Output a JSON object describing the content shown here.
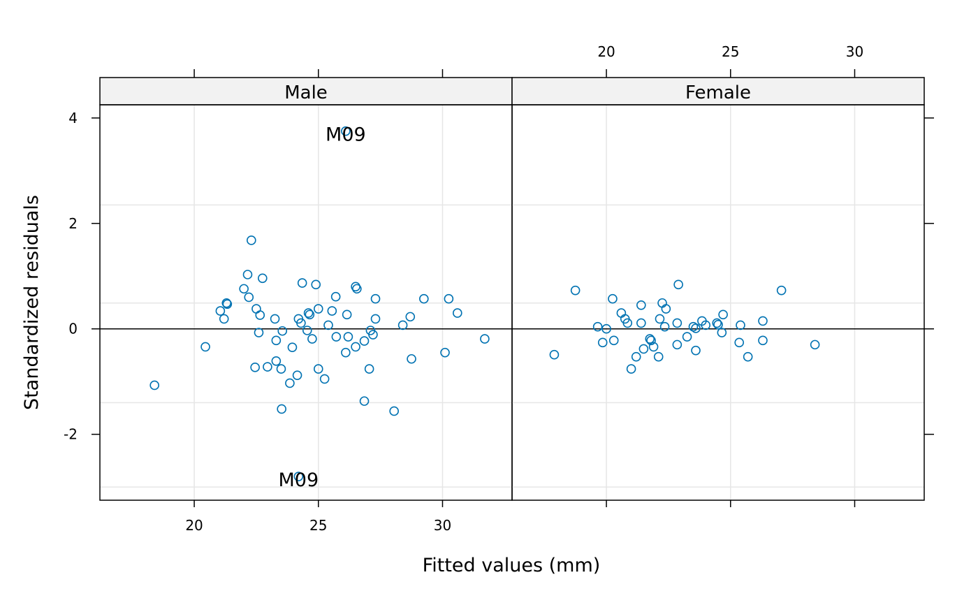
{
  "chart_data": {
    "type": "scatter",
    "xlabel": "Fitted values (mm)",
    "ylabel": "Standardized residuals",
    "xlim": [
      16.2,
      32.8
    ],
    "ylim": [
      -3.25,
      4.25
    ],
    "x_ticks": [
      20,
      25,
      30
    ],
    "y_ticks": [
      -2,
      0,
      2,
      4
    ],
    "y_tick_labels": [
      "-2",
      "0",
      "2",
      "4"
    ],
    "grid": true,
    "reference_line_y": 0,
    "point_color": "#0072b2",
    "panels": [
      {
        "name": "Male",
        "points": [
          [
            18.4,
            -1.07
          ],
          [
            20.45,
            -0.34
          ],
          [
            21.05,
            0.34
          ],
          [
            21.2,
            0.19
          ],
          [
            21.3,
            0.49
          ],
          [
            21.33,
            0.47
          ],
          [
            22.0,
            0.76
          ],
          [
            22.15,
            1.03
          ],
          [
            22.2,
            0.6
          ],
          [
            22.3,
            1.68
          ],
          [
            22.45,
            -0.73
          ],
          [
            22.5,
            0.38
          ],
          [
            22.6,
            -0.07
          ],
          [
            22.65,
            0.26
          ],
          [
            22.75,
            0.96
          ],
          [
            22.95,
            -0.72
          ],
          [
            23.25,
            0.19
          ],
          [
            23.3,
            -0.22
          ],
          [
            23.3,
            -0.61
          ],
          [
            23.5,
            -0.76
          ],
          [
            23.52,
            -1.52
          ],
          [
            23.55,
            -0.04
          ],
          [
            23.85,
            -1.03
          ],
          [
            23.95,
            -0.35
          ],
          [
            24.15,
            -0.88
          ],
          [
            24.2,
            0.19
          ],
          [
            24.3,
            0.11
          ],
          [
            24.35,
            0.87
          ],
          [
            24.55,
            -0.03
          ],
          [
            24.6,
            0.3
          ],
          [
            24.65,
            0.27
          ],
          [
            24.75,
            -0.19
          ],
          [
            24.9,
            0.84
          ],
          [
            25.0,
            0.38
          ],
          [
            25.0,
            -0.76
          ],
          [
            25.25,
            -0.95
          ],
          [
            25.4,
            0.07
          ],
          [
            25.55,
            0.34
          ],
          [
            25.7,
            0.61
          ],
          [
            25.72,
            -0.15
          ],
          [
            26.1,
            -0.45
          ],
          [
            26.15,
            0.27
          ],
          [
            26.2,
            -0.15
          ],
          [
            26.5,
            -0.34
          ],
          [
            26.5,
            0.8
          ],
          [
            26.55,
            0.76
          ],
          [
            26.85,
            -0.23
          ],
          [
            26.85,
            -1.37
          ],
          [
            27.05,
            -0.76
          ],
          [
            27.1,
            -0.03
          ],
          [
            27.2,
            -0.11
          ],
          [
            27.3,
            0.19
          ],
          [
            27.3,
            0.57
          ],
          [
            28.4,
            0.07
          ],
          [
            28.7,
            0.23
          ],
          [
            28.75,
            -0.57
          ],
          [
            29.25,
            0.57
          ],
          [
            30.1,
            -0.45
          ],
          [
            30.25,
            0.57
          ],
          [
            30.6,
            0.3
          ],
          [
            31.7,
            -0.19
          ],
          [
            28.05,
            -1.56
          ],
          [
            26.1,
            3.75
          ],
          [
            24.2,
            -2.8
          ]
        ],
        "annotations": [
          {
            "text": "M09",
            "x": 26.1,
            "y": 3.7
          },
          {
            "text": "M09",
            "x": 24.2,
            "y": -2.85
          }
        ]
      },
      {
        "name": "Female",
        "points": [
          [
            17.9,
            -0.49
          ],
          [
            18.75,
            0.73
          ],
          [
            19.65,
            0.04
          ],
          [
            19.85,
            -0.26
          ],
          [
            20.0,
            0.0
          ],
          [
            20.25,
            0.57
          ],
          [
            20.3,
            -0.22
          ],
          [
            20.6,
            0.3
          ],
          [
            20.75,
            0.19
          ],
          [
            20.85,
            0.11
          ],
          [
            21.0,
            -0.76
          ],
          [
            21.2,
            -0.53
          ],
          [
            21.4,
            0.45
          ],
          [
            21.4,
            0.11
          ],
          [
            21.5,
            -0.38
          ],
          [
            21.75,
            -0.19
          ],
          [
            21.8,
            -0.22
          ],
          [
            21.9,
            -0.34
          ],
          [
            22.1,
            -0.53
          ],
          [
            22.15,
            0.19
          ],
          [
            22.25,
            0.49
          ],
          [
            22.35,
            0.04
          ],
          [
            22.4,
            0.38
          ],
          [
            22.85,
            0.11
          ],
          [
            22.85,
            -0.3
          ],
          [
            22.9,
            0.84
          ],
          [
            23.25,
            -0.15
          ],
          [
            23.5,
            0.04
          ],
          [
            23.6,
            0.01
          ],
          [
            23.6,
            -0.41
          ],
          [
            23.85,
            0.15
          ],
          [
            24.0,
            0.07
          ],
          [
            24.45,
            0.11
          ],
          [
            24.5,
            0.08
          ],
          [
            24.65,
            -0.07
          ],
          [
            24.7,
            0.27
          ],
          [
            25.35,
            -0.26
          ],
          [
            25.4,
            0.07
          ],
          [
            25.7,
            -0.53
          ],
          [
            26.3,
            0.15
          ],
          [
            26.3,
            -0.22
          ],
          [
            27.05,
            0.73
          ],
          [
            28.4,
            -0.3
          ]
        ],
        "annotations": []
      }
    ]
  }
}
